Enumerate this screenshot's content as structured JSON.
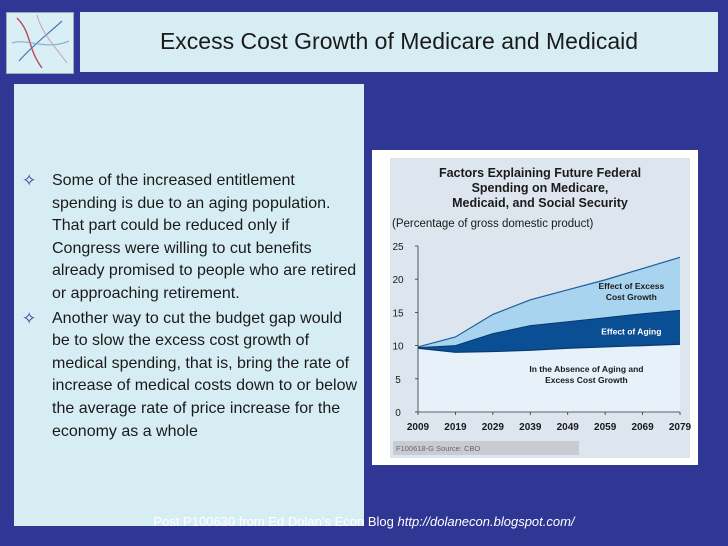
{
  "slide": {
    "title": "Excess Cost Growth of Medicare and Medicaid",
    "bullets": [
      "Some of the increased entitlement spending is due to an aging population. That part could be reduced only if Congress were willing to cut benefits already promised to people who are retired or approaching retirement.",
      "Another way to cut the budget gap would be to slow the excess cost growth of medical spending, that is, bring the rate of increase of medical costs down to or below the average rate of price increase for the economy as a whole"
    ],
    "bullet_icon": "diamond-star-icon",
    "footer_text": "Post P100630 from Ed Dolan’s Econ Blog ",
    "footer_url": "http://dolanecon.blogspot.com/"
  },
  "colors": {
    "background": "#2f3694",
    "panel": "#d7edf4",
    "chart_light": "#a8d4ef",
    "chart_dark": "#0a4f93",
    "chart_base": "#e6f1fa"
  },
  "chart_data": {
    "type": "area",
    "title": "Factors Explaining Future Federal Spending on Medicare, Medicaid, and Social Security",
    "ylabel": "(Percentage of gross domestic product)",
    "source": "F100618-G Source: CBO",
    "x": [
      2009,
      2019,
      2029,
      2039,
      2049,
      2059,
      2069,
      2079
    ],
    "xticks": [
      "2009",
      "2019",
      "2029",
      "2039",
      "2049",
      "2059",
      "2069",
      "2079"
    ],
    "yticks": [
      "0",
      "5",
      "10",
      "15",
      "20",
      "25"
    ],
    "ylim": [
      0,
      25
    ],
    "series": [
      {
        "name": "In the Absence of Aging and Excess Cost Growth",
        "values": [
          9.6,
          9.0,
          9.1,
          9.3,
          9.6,
          9.8,
          10.0,
          10.2
        ]
      },
      {
        "name": "Effect of Aging",
        "values": [
          9.7,
          10.0,
          11.8,
          13.0,
          13.6,
          14.2,
          14.8,
          15.3
        ]
      },
      {
        "name": "Effect of Excess Cost Growth",
        "values": [
          9.8,
          11.3,
          14.7,
          16.9,
          18.4,
          19.9,
          21.6,
          23.3
        ]
      }
    ],
    "labels": {
      "excess": [
        "Effect of Excess",
        "Cost Growth"
      ],
      "aging": [
        "Effect of Aging"
      ],
      "base": [
        "In the Absence of Aging and",
        "Excess Cost Growth"
      ]
    }
  }
}
